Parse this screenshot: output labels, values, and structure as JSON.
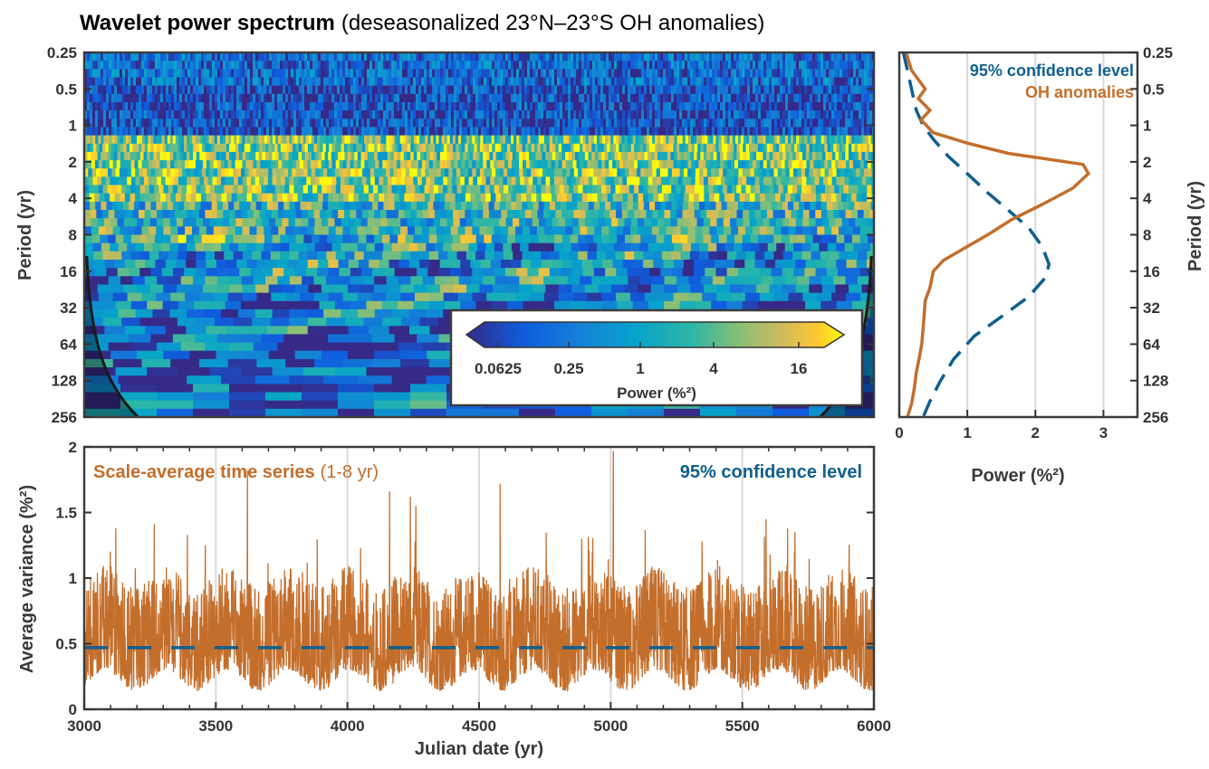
{
  "title": {
    "bold": "Wavelet power spectrum",
    "rest": "(deseasonalized 23°N–23°S OH anomalies)"
  },
  "colors": {
    "orange": "#c46e2b",
    "blue": "#0f5f8f",
    "frame": "#3c3c3c",
    "grid": "#d9d9d9"
  },
  "chart_data": [
    {
      "id": "wavelet",
      "type": "heatmap",
      "ylabel": "Period (yr)",
      "y_scale": "log2",
      "y_ticks": [
        "0.25",
        "0.5",
        "1",
        "2",
        "4",
        "8",
        "16",
        "32",
        "64",
        "128",
        "256"
      ],
      "y_tick_values": [
        0.25,
        0.5,
        1,
        2,
        4,
        8,
        16,
        32,
        64,
        128,
        256
      ],
      "x_range": [
        3000,
        6000
      ],
      "colorbar": {
        "label": "Power (%²)",
        "ticks": [
          "0.0625",
          "0.25",
          "1",
          "4",
          "16"
        ],
        "tick_values": [
          0.0625,
          0.25,
          1,
          4,
          16
        ],
        "scale": "log2",
        "colormap": "parula"
      },
      "cone_of_influence": true
    },
    {
      "id": "global",
      "type": "line",
      "xlabel": "Power (%²)",
      "ylabel": "Period (yr)",
      "xlim": [
        0,
        3.5
      ],
      "x_ticks": [
        "0",
        "1",
        "2",
        "3"
      ],
      "y_ticks": [
        "0.25",
        "0.5",
        "1",
        "2",
        "4",
        "8",
        "16",
        "32",
        "64",
        "128",
        "256"
      ],
      "legend": [
        "95% confidence level",
        "OH anomalies"
      ],
      "legend_position": "top-right",
      "grid": "vertical",
      "series": [
        {
          "name": "OH anomalies",
          "style": "solid",
          "points": [
            [
              0.1,
              0.25
            ],
            [
              0.18,
              0.35
            ],
            [
              0.38,
              0.5
            ],
            [
              0.28,
              0.6
            ],
            [
              0.45,
              0.75
            ],
            [
              0.32,
              0.9
            ],
            [
              0.5,
              1.15
            ],
            [
              1.0,
              1.4
            ],
            [
              1.6,
              1.7
            ],
            [
              2.7,
              2.1
            ],
            [
              2.78,
              2.5
            ],
            [
              2.55,
              3.3
            ],
            [
              2.1,
              4.5
            ],
            [
              1.65,
              6
            ],
            [
              1.3,
              8
            ],
            [
              1.0,
              10
            ],
            [
              0.65,
              13
            ],
            [
              0.5,
              16
            ],
            [
              0.45,
              22
            ],
            [
              0.38,
              28
            ],
            [
              0.36,
              40
            ],
            [
              0.33,
              64
            ],
            [
              0.3,
              80
            ],
            [
              0.25,
              110
            ],
            [
              0.22,
              150
            ],
            [
              0.18,
              200
            ],
            [
              0.12,
              256
            ]
          ]
        },
        {
          "name": "95% confidence level",
          "style": "dashed",
          "points": [
            [
              0.06,
              0.25
            ],
            [
              0.12,
              0.35
            ],
            [
              0.18,
              0.5
            ],
            [
              0.25,
              0.75
            ],
            [
              0.35,
              1.0
            ],
            [
              0.5,
              1.3
            ],
            [
              0.72,
              1.8
            ],
            [
              1.0,
              2.5
            ],
            [
              1.3,
              3.6
            ],
            [
              1.6,
              5
            ],
            [
              1.9,
              7
            ],
            [
              2.1,
              10
            ],
            [
              2.2,
              14
            ],
            [
              2.15,
              18
            ],
            [
              1.9,
              26
            ],
            [
              1.5,
              38
            ],
            [
              1.1,
              55
            ],
            [
              0.8,
              85
            ],
            [
              0.6,
              130
            ],
            [
              0.45,
              190
            ],
            [
              0.35,
              256
            ]
          ]
        }
      ]
    },
    {
      "id": "scale_average",
      "type": "line",
      "xlabel": "Julian date (yr)",
      "ylabel": "Average variance (%²)",
      "xlim": [
        3000,
        6000
      ],
      "ylim": [
        0,
        2
      ],
      "x_ticks": [
        "3000",
        "3500",
        "4000",
        "4500",
        "5000",
        "5500",
        "6000"
      ],
      "y_ticks": [
        "0",
        "0.5",
        "1",
        "1.5",
        "2"
      ],
      "grid": "vertical",
      "annotation": {
        "bold": "Scale-average time series",
        "rest": "(1-8 yr)"
      },
      "legend": [
        "95% confidence level"
      ],
      "legend_position": "top-right",
      "series": [
        {
          "name": "Scale-average time series (1-8 yr)",
          "style": "solid",
          "values_description": "one sample per year from 3000 to 6000; mean ~0.5, spikes near 3620 (1.82), 4160 (1.66), 4580 (1.72), 5010 (1.97)",
          "peaks": [
            [
              3620,
              1.82
            ],
            [
              4160,
              1.66
            ],
            [
              4580,
              1.72
            ],
            [
              5010,
              1.97
            ],
            [
              4930,
              1.2
            ],
            [
              5700,
              1.35
            ],
            [
              5590,
              1.45
            ],
            [
              3120,
              1.38
            ],
            [
              3460,
              1.25
            ],
            [
              4260,
              1.55
            ],
            [
              4890,
              1.3
            ]
          ],
          "mean": 0.5
        },
        {
          "name": "95% confidence level",
          "style": "dashed",
          "value": 0.47
        }
      ]
    }
  ]
}
